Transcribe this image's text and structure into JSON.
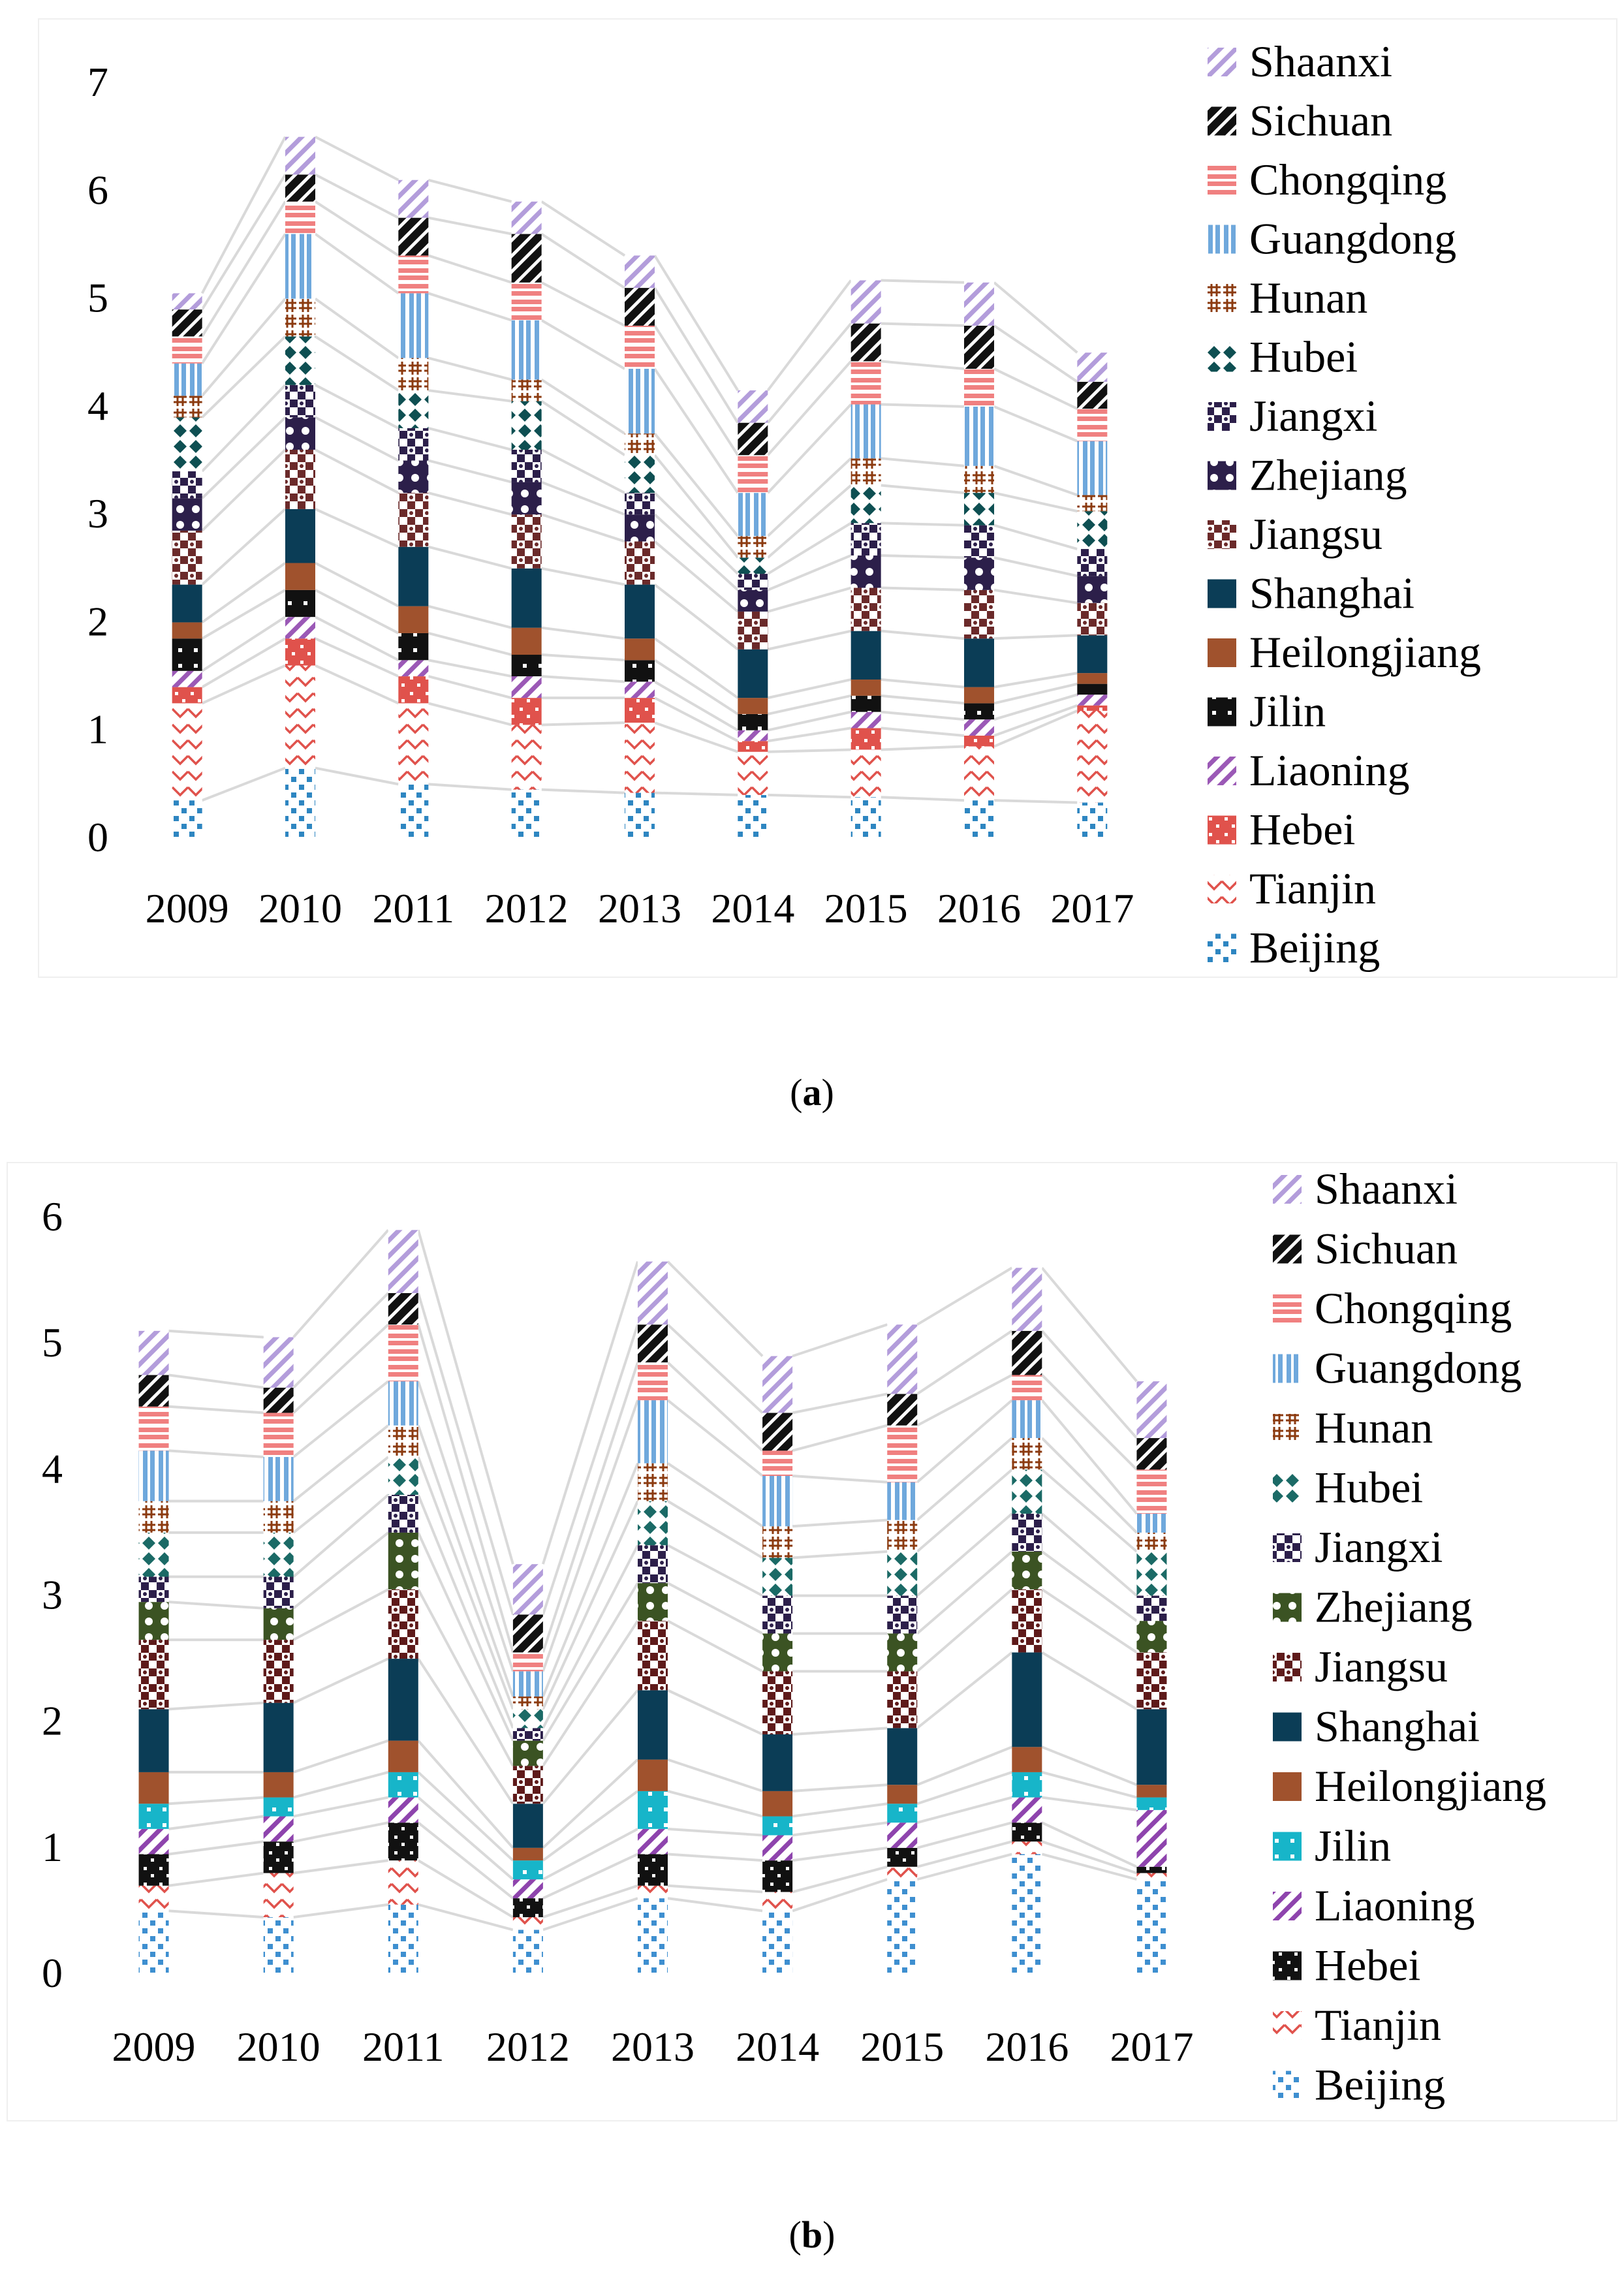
{
  "colors": {
    "Beijing": "#2E86C1",
    "Tianjin": "#E0524C",
    "Hebei": "#E0524C",
    "Liaoning": "#9B59B6",
    "Jilin": "#111111",
    "Heilongjiang": "#A0522D",
    "Shanghai": "#0B3D56",
    "Jiangsu": "#6B2A2A",
    "Zhejiang": "#2C1F4A",
    "Jiangxi": "#2C1F4A",
    "Hubei": "#0E4F52",
    "Hunan": "#8B3A0F",
    "Guangdong": "#6FA8DC",
    "Chongqing": "#F08080",
    "Sichuan": "#111111",
    "Shaanxi": "#B39DDB",
    "b_Beijing": "#3E8FD0",
    "b_Tianjin": "#E0524C",
    "b_Hebei": "#111111",
    "b_Liaoning": "#8E44AD",
    "b_Jilin": "#17B5C9",
    "b_Heilongjiang": "#A0522D",
    "b_Shanghai": "#0B3D56",
    "b_Jiangsu": "#5E1A1A",
    "b_Zhejiang": "#3B5323",
    "b_Jiangxi": "#2C1F4A",
    "b_Hubei": "#1B6A66",
    "b_Hunan": "#8B3A0F",
    "b_Guangdong": "#6FA8DC",
    "b_Chongqing": "#F08080",
    "b_Sichuan": "#111111",
    "b_Shaanxi": "#B39DDB"
  },
  "captions": {
    "a": "a",
    "b": "b"
  },
  "chart_data": [
    {
      "id": "a",
      "type": "bar",
      "stacked": true,
      "title": "",
      "xlabel": "",
      "ylabel": "",
      "ylim": [
        0,
        7
      ],
      "yticks": [
        "0",
        "1",
        "2",
        "3",
        "4",
        "5",
        "6",
        "7"
      ],
      "legend_position": "right",
      "categories": [
        "2009",
        "2010",
        "2011",
        "2012",
        "2013",
        "2014",
        "2015",
        "2016",
        "2017"
      ],
      "series": [
        {
          "name": "Beijing",
          "values": [
            0.35,
            0.65,
            0.5,
            0.45,
            0.42,
            0.4,
            0.38,
            0.35,
            0.33
          ]
        },
        {
          "name": "Tianjin",
          "values": [
            0.9,
            0.95,
            0.75,
            0.6,
            0.65,
            0.4,
            0.44,
            0.5,
            0.85
          ]
        },
        {
          "name": "Hebei",
          "values": [
            0.15,
            0.25,
            0.25,
            0.25,
            0.23,
            0.1,
            0.2,
            0.1,
            0.05
          ]
        },
        {
          "name": "Liaoning",
          "values": [
            0.15,
            0.2,
            0.15,
            0.2,
            0.15,
            0.1,
            0.15,
            0.15,
            0.1
          ]
        },
        {
          "name": "Jilin",
          "values": [
            0.3,
            0.25,
            0.25,
            0.2,
            0.2,
            0.15,
            0.15,
            0.15,
            0.1
          ]
        },
        {
          "name": "Heilongjiang",
          "values": [
            0.15,
            0.25,
            0.25,
            0.25,
            0.2,
            0.15,
            0.15,
            0.15,
            0.1
          ]
        },
        {
          "name": "Shanghai",
          "values": [
            0.35,
            0.5,
            0.55,
            0.55,
            0.5,
            0.45,
            0.45,
            0.45,
            0.35
          ]
        },
        {
          "name": "Jiangsu",
          "values": [
            0.5,
            0.55,
            0.5,
            0.5,
            0.4,
            0.35,
            0.4,
            0.45,
            0.3
          ]
        },
        {
          "name": "Zhejiang",
          "values": [
            0.3,
            0.3,
            0.3,
            0.3,
            0.25,
            0.2,
            0.3,
            0.3,
            0.25
          ]
        },
        {
          "name": "Jiangxi",
          "values": [
            0.25,
            0.3,
            0.3,
            0.3,
            0.2,
            0.15,
            0.3,
            0.3,
            0.25
          ]
        },
        {
          "name": "Hubei",
          "values": [
            0.5,
            0.45,
            0.35,
            0.45,
            0.35,
            0.15,
            0.35,
            0.3,
            0.35
          ]
        },
        {
          "name": "Hunan",
          "values": [
            0.2,
            0.35,
            0.3,
            0.2,
            0.2,
            0.2,
            0.25,
            0.25,
            0.15
          ]
        },
        {
          "name": "Guangdong",
          "values": [
            0.3,
            0.6,
            0.6,
            0.55,
            0.6,
            0.4,
            0.5,
            0.55,
            0.5
          ]
        },
        {
          "name": "Chongqing",
          "values": [
            0.25,
            0.3,
            0.35,
            0.35,
            0.4,
            0.35,
            0.4,
            0.35,
            0.3
          ]
        },
        {
          "name": "Sichuan",
          "values": [
            0.25,
            0.25,
            0.35,
            0.45,
            0.35,
            0.3,
            0.35,
            0.4,
            0.25
          ]
        },
        {
          "name": "Shaanxi",
          "values": [
            0.15,
            0.35,
            0.35,
            0.3,
            0.3,
            0.3,
            0.4,
            0.4,
            0.27
          ]
        }
      ]
    },
    {
      "id": "b",
      "type": "bar",
      "stacked": true,
      "title": "",
      "xlabel": "",
      "ylabel": "",
      "ylim": [
        0,
        6
      ],
      "yticks": [
        "0",
        "1",
        "2",
        "3",
        "4",
        "5",
        "6"
      ],
      "legend_position": "right",
      "categories": [
        "2009",
        "2010",
        "2011",
        "2012",
        "2013",
        "2014",
        "2015",
        "2016",
        "2017"
      ],
      "series": [
        {
          "name": "Beijing",
          "values": [
            0.5,
            0.45,
            0.55,
            0.35,
            0.6,
            0.5,
            0.75,
            0.95,
            0.75
          ]
        },
        {
          "name": "Tianjin",
          "values": [
            0.2,
            0.35,
            0.35,
            0.1,
            0.1,
            0.15,
            0.1,
            0.1,
            0.05
          ]
        },
        {
          "name": "Hebei",
          "values": [
            0.25,
            0.25,
            0.3,
            0.15,
            0.25,
            0.25,
            0.15,
            0.15,
            0.05
          ]
        },
        {
          "name": "Liaoning",
          "values": [
            0.2,
            0.2,
            0.2,
            0.15,
            0.2,
            0.2,
            0.2,
            0.2,
            0.45
          ]
        },
        {
          "name": "Jilin",
          "values": [
            0.2,
            0.15,
            0.2,
            0.15,
            0.3,
            0.15,
            0.15,
            0.2,
            0.1
          ]
        },
        {
          "name": "Heilongjiang",
          "values": [
            0.25,
            0.2,
            0.25,
            0.1,
            0.25,
            0.2,
            0.15,
            0.2,
            0.1
          ]
        },
        {
          "name": "Shanghai",
          "values": [
            0.5,
            0.55,
            0.65,
            0.35,
            0.55,
            0.45,
            0.45,
            0.75,
            0.6
          ]
        },
        {
          "name": "Jiangsu",
          "values": [
            0.55,
            0.5,
            0.55,
            0.3,
            0.55,
            0.5,
            0.45,
            0.5,
            0.45
          ]
        },
        {
          "name": "Zhejiang",
          "values": [
            0.3,
            0.25,
            0.45,
            0.2,
            0.3,
            0.3,
            0.3,
            0.3,
            0.25
          ]
        },
        {
          "name": "Jiangxi",
          "values": [
            0.2,
            0.25,
            0.3,
            0.1,
            0.3,
            0.3,
            0.3,
            0.3,
            0.2
          ]
        },
        {
          "name": "Hubei",
          "values": [
            0.35,
            0.35,
            0.3,
            0.15,
            0.35,
            0.3,
            0.35,
            0.35,
            0.35
          ]
        },
        {
          "name": "Hunan",
          "values": [
            0.25,
            0.25,
            0.25,
            0.1,
            0.3,
            0.25,
            0.25,
            0.25,
            0.15
          ]
        },
        {
          "name": "Guangdong",
          "values": [
            0.4,
            0.35,
            0.35,
            0.2,
            0.5,
            0.4,
            0.3,
            0.3,
            0.15
          ]
        },
        {
          "name": "Chongqing",
          "values": [
            0.35,
            0.35,
            0.45,
            0.15,
            0.3,
            0.2,
            0.45,
            0.2,
            0.35
          ]
        },
        {
          "name": "Sichuan",
          "values": [
            0.25,
            0.2,
            0.25,
            0.3,
            0.3,
            0.3,
            0.25,
            0.35,
            0.25
          ]
        },
        {
          "name": "Shaanxi",
          "values": [
            0.35,
            0.4,
            0.5,
            0.4,
            0.5,
            0.45,
            0.55,
            0.5,
            0.45
          ]
        }
      ]
    }
  ]
}
